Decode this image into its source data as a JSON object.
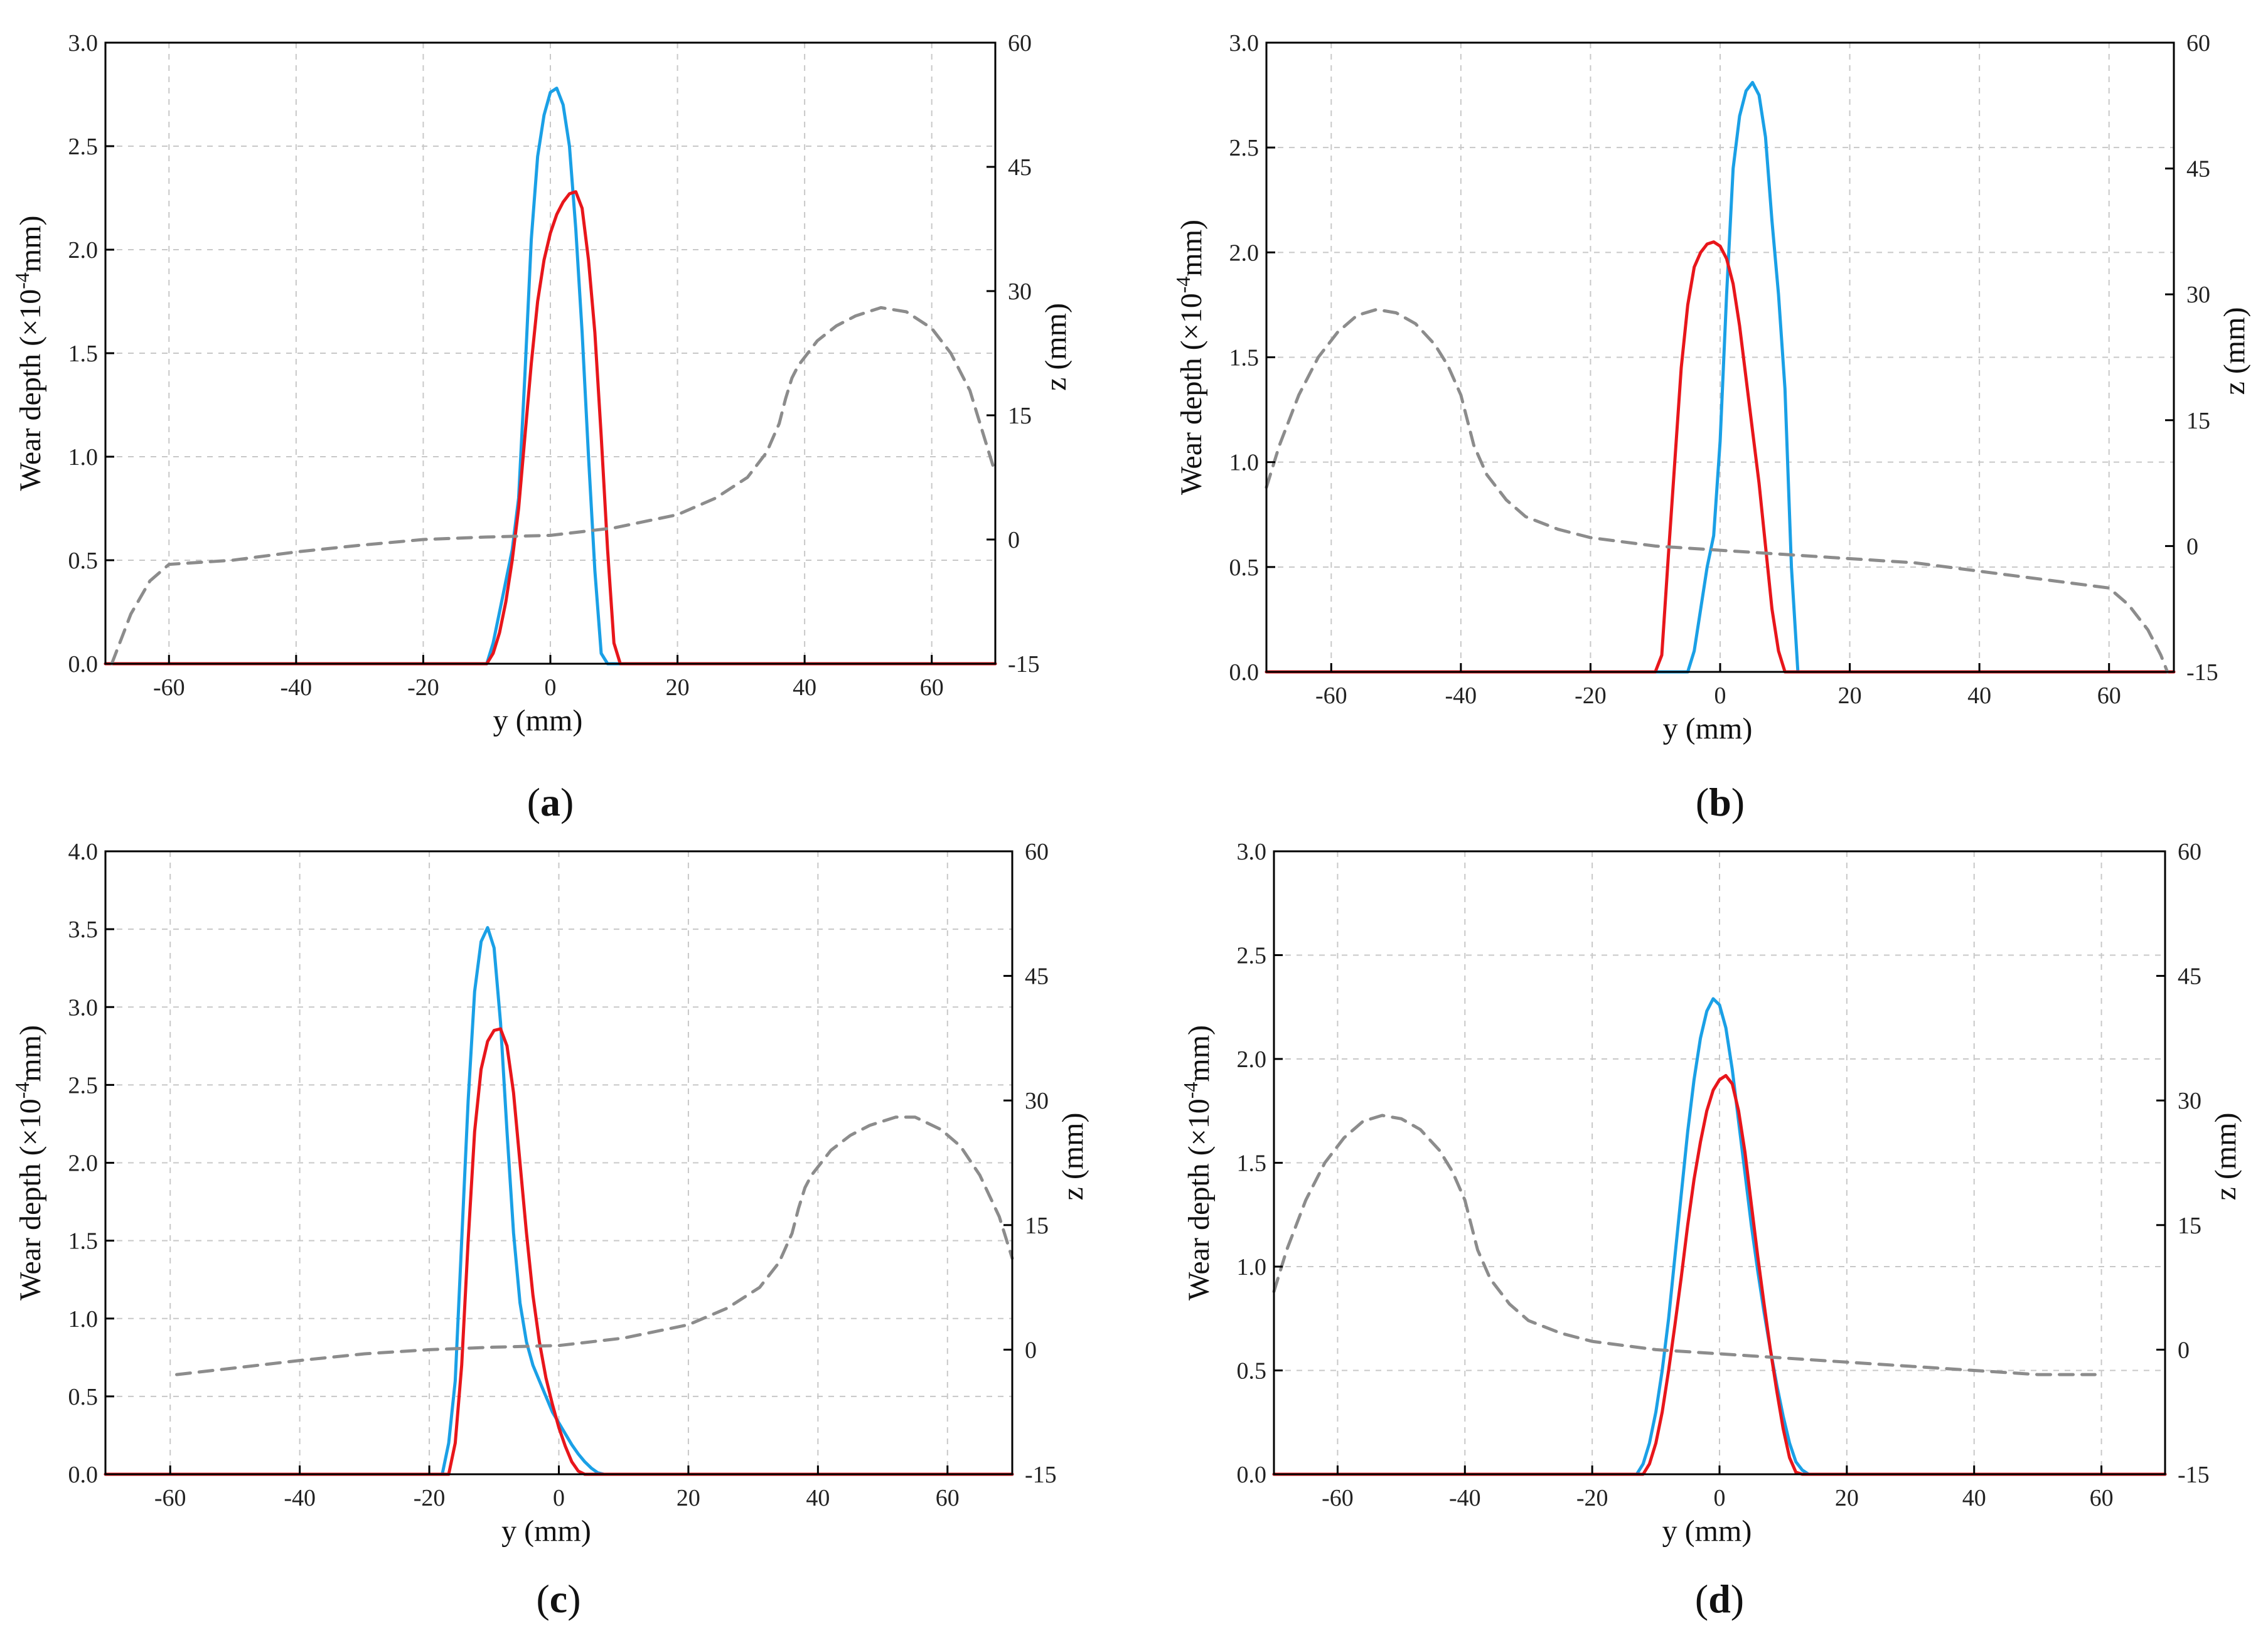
{
  "colors": {
    "blue": "#1aa0e6",
    "red": "#e8161b",
    "gray": "#8c8c8c"
  },
  "chart_data": [
    {
      "panel": "a",
      "type": "line",
      "caption_open": "(",
      "caption_letter": "a",
      "caption_close": ")",
      "xlabel": "y (mm)",
      "ylabel_left": {
        "pre": "Wear depth (×10",
        "sup": "-4",
        "post": "mm)"
      },
      "ylabel_right": "z (mm)",
      "xlim": [
        -70,
        70
      ],
      "ylim": [
        0,
        3.0
      ],
      "y2lim": [
        -15,
        60
      ],
      "xticks": [
        -60,
        -40,
        -20,
        0,
        20,
        40,
        60
      ],
      "xtick_labels": [
        "-60",
        "-40",
        "-20",
        "0",
        "20",
        "40",
        "60"
      ],
      "yticks": [
        0,
        0.5,
        1.0,
        1.5,
        2.0,
        2.5,
        3.0
      ],
      "ytick_labels": [
        "0.0",
        "0.5",
        "1.0",
        "1.5",
        "2.0",
        "2.5",
        "3.0"
      ],
      "y2ticks": [
        -15,
        0,
        15,
        30,
        45,
        60
      ],
      "y2tick_labels": [
        "-15",
        "0",
        "15",
        "30",
        "45",
        "60"
      ],
      "series": [
        {
          "name": "blue",
          "axis": "left",
          "style": "solid",
          "x": [
            -70,
            -10,
            -9,
            -8,
            -7,
            -6,
            -5,
            -4,
            -3,
            -2,
            -1,
            0,
            1,
            2,
            3,
            4,
            5,
            6,
            7,
            8,
            9,
            70
          ],
          "y": [
            0,
            0,
            0.1,
            0.25,
            0.4,
            0.55,
            0.8,
            1.4,
            2.05,
            2.45,
            2.65,
            2.76,
            2.78,
            2.7,
            2.5,
            2.1,
            1.6,
            1.0,
            0.45,
            0.05,
            0,
            0
          ]
        },
        {
          "name": "red",
          "axis": "left",
          "style": "solid",
          "x": [
            -70,
            -10,
            -9,
            -8,
            -7,
            -6,
            -5,
            -4,
            -3,
            -2,
            -1,
            0,
            1,
            2,
            3,
            4,
            5,
            6,
            7,
            8,
            9,
            10,
            11,
            12,
            70
          ],
          "y": [
            0,
            0,
            0.05,
            0.15,
            0.3,
            0.5,
            0.75,
            1.1,
            1.45,
            1.75,
            1.95,
            2.08,
            2.17,
            2.23,
            2.27,
            2.28,
            2.2,
            1.95,
            1.6,
            1.1,
            0.55,
            0.1,
            0,
            0,
            0
          ]
        },
        {
          "name": "profile",
          "axis": "right",
          "style": "dashed",
          "x": [
            -69,
            -66,
            -63,
            -60,
            -50,
            -40,
            -30,
            -20,
            -10,
            0,
            10,
            20,
            26,
            31,
            34,
            36,
            37,
            38,
            39,
            40,
            42,
            45,
            48,
            52,
            56,
            60,
            63,
            66,
            68,
            70
          ],
          "y": [
            -15,
            -9,
            -5,
            -3,
            -2.5,
            -1.5,
            -0.7,
            0,
            0.3,
            0.5,
            1.4,
            3,
            5,
            7.5,
            10.5,
            14,
            17,
            19.5,
            21,
            22,
            24,
            25.8,
            27,
            28,
            27.5,
            25.5,
            22.5,
            18,
            13,
            8
          ]
        }
      ]
    },
    {
      "panel": "b",
      "type": "line",
      "caption_open": "(",
      "caption_letter": "b",
      "caption_close": ")",
      "xlabel": "y (mm)",
      "ylabel_left": {
        "pre": "Wear depth (×10",
        "sup": "-4",
        "post": "mm)"
      },
      "ylabel_right": "z (mm)",
      "xlim": [
        -70,
        70
      ],
      "ylim": [
        0,
        3.0
      ],
      "y2lim": [
        -15,
        60
      ],
      "xticks": [
        -60,
        -40,
        -20,
        0,
        20,
        40,
        60
      ],
      "xtick_labels": [
        "-60",
        "-40",
        "-20",
        "0",
        "20",
        "40",
        "60"
      ],
      "yticks": [
        0,
        0.5,
        1.0,
        1.5,
        2.0,
        2.5,
        3.0
      ],
      "ytick_labels": [
        "0.0",
        "0.5",
        "1.0",
        "1.5",
        "2.0",
        "2.5",
        "3.0"
      ],
      "y2ticks": [
        -15,
        0,
        15,
        30,
        45,
        60
      ],
      "y2tick_labels": [
        "-15",
        "0",
        "15",
        "30",
        "45",
        "60"
      ],
      "series": [
        {
          "name": "blue",
          "axis": "left",
          "style": "solid",
          "x": [
            -70,
            -5,
            -4,
            -3,
            -2,
            -1,
            0,
            1,
            2,
            3,
            4,
            5,
            6,
            7,
            8,
            9,
            10,
            11,
            12,
            70
          ],
          "y": [
            0,
            0,
            0.1,
            0.3,
            0.5,
            0.65,
            1.1,
            1.8,
            2.4,
            2.65,
            2.77,
            2.81,
            2.75,
            2.55,
            2.15,
            1.8,
            1.35,
            0.5,
            0,
            0
          ]
        },
        {
          "name": "red",
          "axis": "left",
          "style": "solid",
          "x": [
            -70,
            -10,
            -9,
            -8,
            -7,
            -6,
            -5,
            -4,
            -3,
            -2,
            -1,
            0,
            1,
            2,
            3,
            4,
            5,
            6,
            7,
            8,
            9,
            10,
            11,
            70
          ],
          "y": [
            0,
            0,
            0.08,
            0.55,
            1.0,
            1.45,
            1.75,
            1.93,
            2.0,
            2.04,
            2.05,
            2.03,
            1.97,
            1.85,
            1.65,
            1.4,
            1.15,
            0.9,
            0.6,
            0.3,
            0.1,
            0,
            0,
            0
          ]
        },
        {
          "name": "profile",
          "axis": "right",
          "style": "dashed",
          "x": [
            -70,
            -68,
            -65,
            -62,
            -59,
            -56,
            -53,
            -50,
            -47,
            -44,
            -42,
            -40,
            -39,
            -38,
            -36,
            -33,
            -30,
            -25,
            -20,
            -10,
            0,
            10,
            20,
            30,
            40,
            50,
            60,
            63,
            66,
            68,
            69
          ],
          "y": [
            7,
            12,
            18,
            22.5,
            25.5,
            27.5,
            28.2,
            27.8,
            26.5,
            24,
            21.5,
            18,
            15,
            12,
            8.5,
            5.5,
            3.5,
            2,
            1,
            0,
            -0.5,
            -1,
            -1.5,
            -2,
            -3,
            -4,
            -5,
            -7,
            -10,
            -13,
            -15
          ]
        }
      ]
    },
    {
      "panel": "c",
      "type": "line",
      "caption_open": "(",
      "caption_letter": "c",
      "caption_close": ")",
      "xlabel": "y (mm)",
      "ylabel_left": {
        "pre": "Wear depth (×10",
        "sup": "-4",
        "post": "mm)"
      },
      "ylabel_right": "z (mm)",
      "xlim": [
        -70,
        70
      ],
      "ylim": [
        0,
        4.0
      ],
      "y2lim": [
        -15,
        60
      ],
      "xticks": [
        -60,
        -40,
        -20,
        0,
        20,
        40,
        60
      ],
      "xtick_labels": [
        "-60",
        "-40",
        "-20",
        "0",
        "20",
        "40",
        "60"
      ],
      "yticks": [
        0,
        0.5,
        1.0,
        1.5,
        2.0,
        2.5,
        3.0,
        3.5,
        4.0
      ],
      "ytick_labels": [
        "0.0",
        "0.5",
        "1.0",
        "1.5",
        "2.0",
        "2.5",
        "3.0",
        "3.5",
        "4.0"
      ],
      "y2ticks": [
        -15,
        0,
        15,
        30,
        45,
        60
      ],
      "y2tick_labels": [
        "-15",
        "0",
        "15",
        "30",
        "45",
        "60"
      ],
      "series": [
        {
          "name": "blue",
          "axis": "left",
          "style": "solid",
          "x": [
            -70,
            -18,
            -17,
            -16,
            -15,
            -14,
            -13,
            -12,
            -11,
            -10,
            -9,
            -8,
            -7,
            -6,
            -5,
            -4,
            -3,
            -2,
            -1,
            0,
            1,
            2,
            3,
            4,
            5,
            6,
            7,
            8,
            70
          ],
          "y": [
            0,
            0,
            0.2,
            0.6,
            1.5,
            2.4,
            3.1,
            3.42,
            3.51,
            3.38,
            2.9,
            2.2,
            1.55,
            1.1,
            0.85,
            0.7,
            0.6,
            0.5,
            0.4,
            0.33,
            0.26,
            0.19,
            0.13,
            0.08,
            0.04,
            0.01,
            0,
            0,
            0
          ]
        },
        {
          "name": "red",
          "axis": "left",
          "style": "solid",
          "x": [
            -70,
            -17,
            -16,
            -15,
            -14,
            -13,
            -12,
            -11,
            -10,
            -9,
            -8,
            -7,
            -6,
            -5,
            -4,
            -3,
            -2,
            -1,
            0,
            1,
            2,
            3,
            4,
            70
          ],
          "y": [
            0,
            0,
            0.2,
            0.7,
            1.5,
            2.2,
            2.6,
            2.78,
            2.85,
            2.86,
            2.75,
            2.45,
            2.0,
            1.55,
            1.15,
            0.85,
            0.62,
            0.45,
            0.3,
            0.18,
            0.08,
            0.02,
            0,
            0
          ]
        },
        {
          "name": "profile",
          "axis": "right",
          "style": "dashed",
          "x": [
            -59,
            -50,
            -40,
            -30,
            -20,
            -10,
            0,
            10,
            20,
            26,
            31,
            34,
            36,
            37,
            38,
            39,
            40,
            42,
            45,
            48,
            52,
            55,
            59,
            62,
            65,
            68,
            70
          ],
          "y": [
            -3,
            -2.2,
            -1.3,
            -0.5,
            0,
            0.3,
            0.5,
            1.4,
            3,
            5,
            7.5,
            10.5,
            14,
            17,
            19.5,
            21,
            22,
            24,
            25.8,
            27,
            28,
            28,
            26.5,
            24.5,
            21,
            16,
            11
          ]
        }
      ]
    },
    {
      "panel": "d",
      "type": "line",
      "caption_open": "(",
      "caption_letter": "d",
      "caption_close": ")",
      "xlabel": "y (mm)",
      "ylabel_left": {
        "pre": "Wear depth (×10",
        "sup": "-4",
        "post": "mm)"
      },
      "ylabel_right": "z (mm)",
      "xlim": [
        -70,
        70
      ],
      "ylim": [
        0,
        3.0
      ],
      "y2lim": [
        -15,
        60
      ],
      "xticks": [
        -60,
        -40,
        -20,
        0,
        20,
        40,
        60
      ],
      "xtick_labels": [
        "-60",
        "-40",
        "-20",
        "0",
        "20",
        "40",
        "60"
      ],
      "yticks": [
        0,
        0.5,
        1.0,
        1.5,
        2.0,
        2.5,
        3.0
      ],
      "ytick_labels": [
        "0.0",
        "0.5",
        "1.0",
        "1.5",
        "2.0",
        "2.5",
        "3.0"
      ],
      "y2ticks": [
        -15,
        0,
        15,
        30,
        45,
        60
      ],
      "y2tick_labels": [
        "-15",
        "0",
        "15",
        "30",
        "45",
        "60"
      ],
      "series": [
        {
          "name": "blue",
          "axis": "left",
          "style": "solid",
          "x": [
            -70,
            -13,
            -12,
            -11,
            -10,
            -9,
            -8,
            -7,
            -6,
            -5,
            -4,
            -3,
            -2,
            -1,
            0,
            1,
            2,
            3,
            4,
            5,
            6,
            7,
            8,
            9,
            10,
            11,
            12,
            13,
            14,
            15,
            70
          ],
          "y": [
            0,
            0,
            0.05,
            0.15,
            0.3,
            0.5,
            0.75,
            1.05,
            1.35,
            1.65,
            1.9,
            2.1,
            2.23,
            2.29,
            2.26,
            2.15,
            1.95,
            1.7,
            1.45,
            1.2,
            0.98,
            0.78,
            0.6,
            0.43,
            0.28,
            0.15,
            0.06,
            0.02,
            0,
            0,
            0
          ]
        },
        {
          "name": "red",
          "axis": "left",
          "style": "solid",
          "x": [
            -70,
            -12,
            -11,
            -10,
            -9,
            -8,
            -7,
            -6,
            -5,
            -4,
            -3,
            -2,
            -1,
            0,
            1,
            2,
            3,
            4,
            5,
            6,
            7,
            8,
            9,
            10,
            11,
            12,
            13,
            70
          ],
          "y": [
            0,
            0,
            0.05,
            0.15,
            0.3,
            0.5,
            0.72,
            0.95,
            1.2,
            1.42,
            1.6,
            1.75,
            1.85,
            1.9,
            1.92,
            1.88,
            1.75,
            1.55,
            1.3,
            1.05,
            0.82,
            0.6,
            0.4,
            0.22,
            0.08,
            0.01,
            0,
            0
          ]
        },
        {
          "name": "profile",
          "axis": "right",
          "style": "dashed",
          "x": [
            -70,
            -68,
            -65,
            -62,
            -59,
            -56,
            -53,
            -50,
            -47,
            -44,
            -42,
            -40,
            -39,
            -38,
            -36,
            -33,
            -30,
            -25,
            -20,
            -10,
            0,
            10,
            20,
            30,
            40,
            50,
            59
          ],
          "y": [
            7,
            12,
            18,
            22.5,
            25.5,
            27.5,
            28.2,
            27.8,
            26.5,
            24,
            21.5,
            18,
            15,
            12,
            8.5,
            5.5,
            3.5,
            2,
            1,
            0,
            -0.5,
            -1,
            -1.5,
            -2,
            -2.5,
            -3,
            -3
          ]
        }
      ]
    }
  ]
}
